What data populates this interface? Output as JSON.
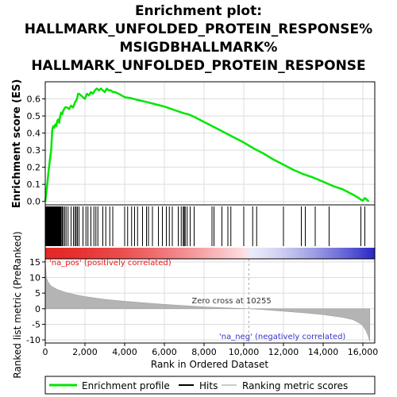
{
  "chart_data": {
    "type": "line",
    "title": [
      "Enrichment plot:",
      "HALLMARK_UNFOLDED_PROTEIN_RESPONSE%",
      "MSIGDBHALLMARK%",
      "HALLMARK_UNFOLDED_PROTEIN_RESPONSE"
    ],
    "xlabel": "Rank in Ordered Dataset",
    "ylabel_top": "Enrichment score (ES)",
    "ylabel_bottom": "Ranked list metric (PreRanked)",
    "xlim": [
      0,
      16600
    ],
    "x_ticks": [
      0,
      2000,
      4000,
      6000,
      8000,
      10000,
      12000,
      14000,
      16000
    ],
    "x_tick_labels": [
      "0",
      "2,000",
      "4,000",
      "6,000",
      "8,000",
      "10,000",
      "12,000",
      "14,000",
      "16,000"
    ],
    "es_ylim": [
      -0.02,
      0.7
    ],
    "es_ticks": [
      0.0,
      0.1,
      0.2,
      0.3,
      0.4,
      0.5,
      0.6
    ],
    "es_tick_labels": [
      "0.0",
      "0.1",
      "0.2",
      "0.3",
      "0.4",
      "0.5",
      "0.6"
    ],
    "metric_ylim": [
      -11,
      16
    ],
    "metric_ticks": [
      15,
      10,
      5,
      0,
      -5,
      -10
    ],
    "metric_tick_labels": [
      "15",
      "10",
      "5",
      "0",
      "-5",
      "-10"
    ],
    "series": [
      {
        "name": "Enrichment profile",
        "color": "#00e600",
        "x": [
          0,
          50,
          100,
          150,
          200,
          250,
          300,
          350,
          400,
          450,
          500,
          550,
          600,
          650,
          700,
          750,
          800,
          850,
          900,
          950,
          1000,
          1100,
          1200,
          1300,
          1400,
          1500,
          1550,
          1600,
          1650,
          1700,
          1800,
          1900,
          2000,
          2100,
          2200,
          2300,
          2400,
          2500,
          2600,
          2700,
          2800,
          2900,
          3000,
          3100,
          3200,
          3300,
          3400,
          3500,
          3700,
          4000,
          4300,
          4600,
          5000,
          5500,
          6000,
          6500,
          7000,
          7200,
          7500,
          8000,
          8500,
          9000,
          9500,
          10000,
          10500,
          11000,
          11500,
          12000,
          12500,
          13000,
          13500,
          14000,
          14500,
          15000,
          15500,
          15800,
          15900,
          16000,
          16100,
          16200,
          16300
        ],
        "values": [
          0.0,
          0.05,
          0.1,
          0.16,
          0.21,
          0.26,
          0.3,
          0.42,
          0.44,
          0.43,
          0.45,
          0.44,
          0.47,
          0.48,
          0.46,
          0.5,
          0.52,
          0.51,
          0.53,
          0.54,
          0.55,
          0.55,
          0.54,
          0.56,
          0.55,
          0.58,
          0.59,
          0.6,
          0.63,
          0.63,
          0.62,
          0.61,
          0.6,
          0.63,
          0.62,
          0.64,
          0.63,
          0.65,
          0.66,
          0.65,
          0.66,
          0.65,
          0.64,
          0.66,
          0.65,
          0.65,
          0.64,
          0.64,
          0.63,
          0.61,
          0.605,
          0.595,
          0.585,
          0.57,
          0.555,
          0.535,
          0.515,
          0.51,
          0.495,
          0.465,
          0.435,
          0.405,
          0.375,
          0.345,
          0.31,
          0.28,
          0.245,
          0.215,
          0.185,
          0.16,
          0.14,
          0.115,
          0.09,
          0.07,
          0.04,
          0.02,
          0.01,
          0.005,
          0.02,
          0.01,
          0.0
        ]
      }
    ],
    "hit_ranks": [
      30,
      60,
      90,
      120,
      160,
      200,
      240,
      280,
      320,
      360,
      400,
      440,
      480,
      520,
      560,
      600,
      640,
      680,
      720,
      760,
      800,
      850,
      900,
      980,
      1050,
      1150,
      1300,
      1420,
      1500,
      1560,
      1620,
      1700,
      1900,
      2050,
      2150,
      2300,
      2450,
      2550,
      2650,
      2900,
      3050,
      3250,
      3400,
      4000,
      4150,
      4350,
      4500,
      4650,
      4900,
      5100,
      5200,
      5400,
      5700,
      5900,
      6100,
      6250,
      6400,
      6700,
      6850,
      6950,
      7000,
      7050,
      7150,
      7300,
      7500,
      8400,
      8500,
      8900,
      9200,
      9350,
      10000,
      10450,
      10650,
      12000,
      12900,
      13100,
      13600,
      14300,
      15900,
      16100
    ],
    "metric_profile": {
      "ranks": [
        0,
        50,
        150,
        300,
        600,
        1000,
        1500,
        2000,
        3000,
        4000,
        5000,
        6000,
        7000,
        8000,
        9000,
        10000,
        10255,
        11000,
        12000,
        13000,
        14000,
        15000,
        15500,
        15800,
        16000,
        16150,
        16250,
        16350
      ],
      "values": [
        15.5,
        10,
        8.5,
        7.3,
        6.2,
        5.3,
        4.5,
        3.9,
        3.0,
        2.4,
        1.9,
        1.4,
        1.0,
        0.6,
        0.3,
        0.05,
        0.0,
        -0.3,
        -0.8,
        -1.3,
        -1.9,
        -2.8,
        -3.5,
        -4.5,
        -5.5,
        -7,
        -8.5,
        -10.5
      ]
    },
    "zero_cross": 10255,
    "annotations": {
      "pos": "'na_pos' (positively correlated)",
      "neg": "'na_neg' (negatively correlated)",
      "zero": "Zero cross at 10255"
    },
    "legend": {
      "placement": "bottom",
      "items": [
        "Enrichment profile",
        "Hits",
        "Ranking metric scores"
      ]
    },
    "colors": {
      "es_line": "#00e600",
      "hits": "#000000",
      "metric_fill": "#b4b4b4",
      "pos_text": "#e31a1c",
      "neg_text": "#3333cc",
      "zero_line": "#aaaaaa",
      "frame": "#000000"
    },
    "grid": true
  }
}
